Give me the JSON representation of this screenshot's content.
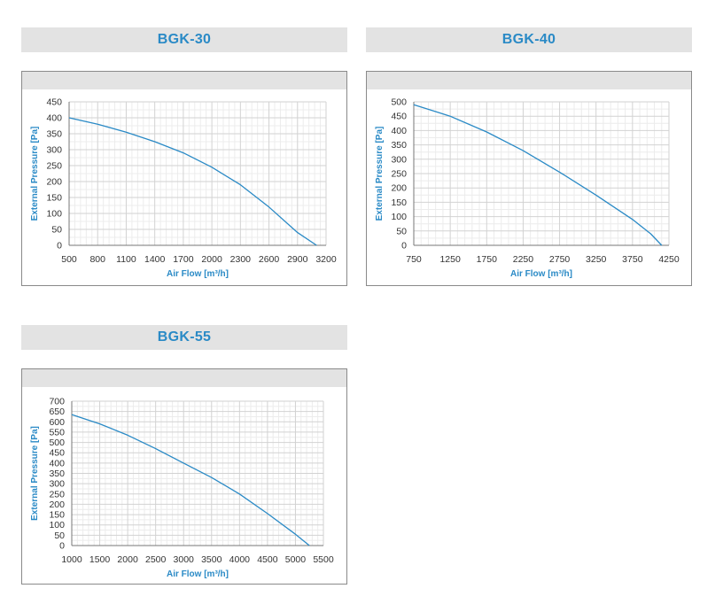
{
  "chart_data": [
    {
      "type": "line",
      "title": "BGK-30",
      "xlabel": "Air Flow [m³/h]",
      "ylabel": "External Pressure [Pa]",
      "xlim": [
        500,
        3200
      ],
      "ylim": [
        0,
        450
      ],
      "xticks": [
        500,
        800,
        1100,
        1400,
        1700,
        2000,
        2300,
        2600,
        2900,
        3200
      ],
      "yticks": [
        0,
        50,
        100,
        150,
        200,
        250,
        300,
        350,
        400,
        450
      ],
      "grid": true,
      "series": [
        {
          "x": [
            500,
            800,
            1100,
            1400,
            1700,
            2000,
            2300,
            2600,
            2900,
            3100
          ],
          "y": [
            400,
            380,
            355,
            325,
            290,
            245,
            190,
            120,
            40,
            0
          ]
        }
      ],
      "color": "#2a8ac6"
    },
    {
      "type": "line",
      "title": "BGK-40",
      "xlabel": "Air Flow [m³/h]",
      "ylabel": "External Pressure [Pa]",
      "xlim": [
        750,
        4250
      ],
      "ylim": [
        0,
        500
      ],
      "xticks": [
        750,
        1250,
        1750,
        2250,
        2750,
        3250,
        3750,
        4250
      ],
      "yticks": [
        0,
        50,
        100,
        150,
        200,
        250,
        300,
        350,
        400,
        450,
        500
      ],
      "grid": true,
      "series": [
        {
          "x": [
            750,
            1250,
            1750,
            2250,
            2750,
            3250,
            3750,
            4000,
            4150
          ],
          "y": [
            490,
            450,
            395,
            330,
            255,
            175,
            90,
            40,
            0
          ]
        }
      ],
      "color": "#2a8ac6"
    },
    {
      "type": "line",
      "title": "BGK-55",
      "xlabel": "Air Flow [m³/h]",
      "ylabel": "External Pressure [Pa]",
      "xlim": [
        1000,
        5500
      ],
      "ylim": [
        0,
        700
      ],
      "xticks": [
        1000,
        1500,
        2000,
        2500,
        3000,
        3500,
        4000,
        4500,
        5000,
        5500
      ],
      "yticks": [
        0,
        50,
        100,
        150,
        200,
        250,
        300,
        350,
        400,
        450,
        500,
        550,
        600,
        650,
        700
      ],
      "grid": true,
      "series": [
        {
          "x": [
            1000,
            1500,
            2000,
            2500,
            3000,
            3500,
            4000,
            4500,
            5000,
            5250
          ],
          "y": [
            635,
            590,
            535,
            470,
            400,
            330,
            250,
            155,
            55,
            0
          ]
        }
      ],
      "color": "#2a8ac6"
    }
  ]
}
